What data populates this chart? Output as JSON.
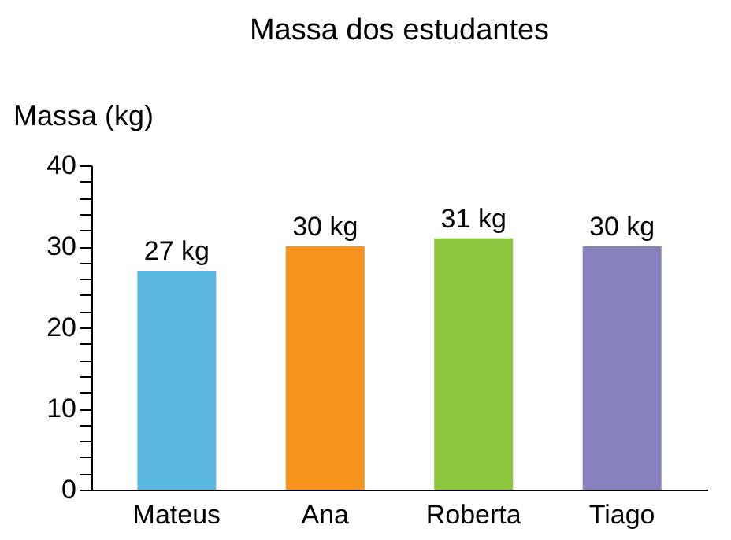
{
  "chart_data": {
    "type": "bar",
    "title": "Massa dos estudantes",
    "ylabel": "Massa (kg)",
    "categories": [
      "Mateus",
      "Ana",
      "Roberta",
      "Tiago"
    ],
    "values": [
      27,
      30,
      31,
      30
    ],
    "colors": [
      "#5ab8e0",
      "#f7941d",
      "#8dc63f",
      "#8781bd"
    ],
    "value_labels": [
      "27 kg",
      "30 kg",
      "31 kg",
      "30 kg"
    ],
    "ylim": [
      0,
      40
    ],
    "yticks": [
      0,
      {
        "value": 2,
        "label": null
      },
      {
        "value": 4,
        "label": null
      },
      {
        "value": 6,
        "label": null
      },
      {
        "value": 8,
        "label": null
      },
      10,
      {
        "value": 12,
        "label": null
      },
      {
        "value": 14,
        "label": null
      },
      {
        "value": 16,
        "label": null
      },
      {
        "value": 18,
        "label": null
      },
      20,
      {
        "value": 22,
        "label": null
      },
      {
        "value": 24,
        "label": null
      },
      {
        "value": 26,
        "label": null
      },
      {
        "value": 28,
        "label": null
      },
      30,
      {
        "value": 32,
        "label": null
      },
      {
        "value": 34,
        "label": null
      },
      {
        "value": 36,
        "label": null
      },
      {
        "value": 38,
        "label": null
      },
      40
    ],
    "grid": false
  }
}
